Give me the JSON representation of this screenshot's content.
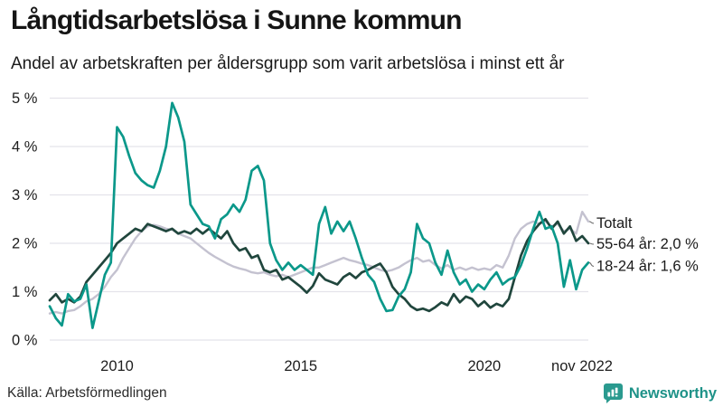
{
  "chart_data": {
    "type": "line",
    "title": "Långtidsarbetslösa i Sunne kommun",
    "subtitle": "Andel av arbetskraften per åldersgrupp som varit arbetslösa i minst ett år",
    "x_unit": "month",
    "x_range": [
      "2008-03",
      "2022-11"
    ],
    "x_points": 89,
    "x_ticks": [
      {
        "index": 11,
        "label": "2010"
      },
      {
        "index": 41,
        "label": "2015"
      },
      {
        "index": 71,
        "label": "2020"
      },
      {
        "index": 88,
        "label": "nov 2022"
      }
    ],
    "ylim": [
      0,
      5
    ],
    "y_ticks": [
      0,
      1,
      2,
      3,
      4,
      5
    ],
    "y_tick_suffix": " %",
    "grid": true,
    "legend_position": "end-labels-right",
    "grid_color": "#e4e3ea",
    "series": [
      {
        "name": "Totalt",
        "color": "#c4c2d0",
        "end_label": "Totalt",
        "values": [
          0.55,
          0.58,
          0.55,
          0.6,
          0.62,
          0.7,
          0.8,
          0.85,
          0.95,
          1.1,
          1.3,
          1.45,
          1.7,
          1.9,
          2.1,
          2.25,
          2.35,
          2.38,
          2.35,
          2.3,
          2.28,
          2.2,
          2.15,
          2.1,
          2.0,
          1.9,
          1.8,
          1.72,
          1.65,
          1.58,
          1.52,
          1.48,
          1.45,
          1.4,
          1.38,
          1.4,
          1.35,
          1.32,
          1.35,
          1.3,
          1.35,
          1.4,
          1.45,
          1.5,
          1.5,
          1.55,
          1.6,
          1.65,
          1.7,
          1.65,
          1.62,
          1.58,
          1.55,
          1.5,
          1.45,
          1.42,
          1.45,
          1.5,
          1.58,
          1.65,
          1.7,
          1.62,
          1.65,
          1.55,
          1.48,
          1.55,
          1.45,
          1.5,
          1.45,
          1.5,
          1.45,
          1.48,
          1.45,
          1.55,
          1.5,
          1.75,
          2.1,
          2.3,
          2.4,
          2.45,
          2.4,
          2.45,
          2.35,
          2.4,
          2.25,
          2.3,
          2.2,
          2.65,
          2.45
        ]
      },
      {
        "name": "55-64 år",
        "color": "#20463d",
        "end_label": "55-64 år: 2,0 %",
        "values": [
          0.82,
          0.95,
          0.78,
          0.85,
          0.78,
          0.9,
          1.2,
          1.35,
          1.5,
          1.65,
          1.8,
          2.0,
          2.1,
          2.2,
          2.3,
          2.25,
          2.4,
          2.35,
          2.3,
          2.25,
          2.3,
          2.2,
          2.25,
          2.2,
          2.3,
          2.2,
          2.3,
          2.2,
          2.1,
          2.25,
          2.0,
          1.85,
          1.9,
          1.7,
          1.75,
          1.45,
          1.4,
          1.45,
          1.25,
          1.3,
          1.2,
          1.1,
          0.98,
          1.12,
          1.38,
          1.25,
          1.2,
          1.15,
          1.3,
          1.38,
          1.28,
          1.4,
          1.45,
          1.52,
          1.58,
          1.4,
          1.1,
          0.95,
          0.85,
          0.7,
          0.62,
          0.65,
          0.6,
          0.68,
          0.78,
          0.72,
          0.95,
          0.78,
          0.9,
          0.85,
          0.7,
          0.8,
          0.67,
          0.75,
          0.7,
          0.85,
          1.3,
          1.75,
          2.05,
          2.25,
          2.4,
          2.5,
          2.3,
          2.45,
          2.2,
          2.35,
          2.05,
          2.15,
          2.0
        ]
      },
      {
        "name": "18-24 år",
        "color": "#0b988a",
        "end_label": "18-24 år: 1,6 %",
        "values": [
          0.7,
          0.45,
          0.3,
          0.95,
          0.8,
          0.85,
          1.15,
          0.25,
          0.8,
          1.35,
          1.6,
          4.4,
          4.2,
          3.8,
          3.45,
          3.3,
          3.2,
          3.15,
          3.5,
          4.0,
          4.9,
          4.6,
          4.1,
          2.8,
          2.6,
          2.4,
          2.35,
          2.1,
          2.5,
          2.6,
          2.8,
          2.65,
          2.9,
          3.5,
          3.6,
          3.3,
          2.0,
          1.65,
          1.45,
          1.6,
          1.45,
          1.55,
          1.45,
          1.35,
          2.4,
          2.75,
          2.2,
          2.45,
          2.25,
          2.45,
          2.1,
          1.7,
          1.35,
          1.2,
          0.85,
          0.6,
          0.62,
          0.9,
          1.05,
          1.4,
          2.4,
          2.1,
          2.0,
          1.6,
          1.35,
          1.85,
          1.4,
          1.15,
          1.25,
          1.0,
          1.15,
          1.05,
          1.25,
          1.4,
          1.15,
          1.25,
          1.3,
          1.55,
          1.9,
          2.3,
          2.65,
          2.3,
          2.35,
          2.0,
          1.1,
          1.65,
          1.05,
          1.45,
          1.6
        ]
      }
    ]
  },
  "source": "Källa: Arbetsförmedlingen",
  "branding": {
    "name": "Newsworthy",
    "color": "#1e9288"
  }
}
